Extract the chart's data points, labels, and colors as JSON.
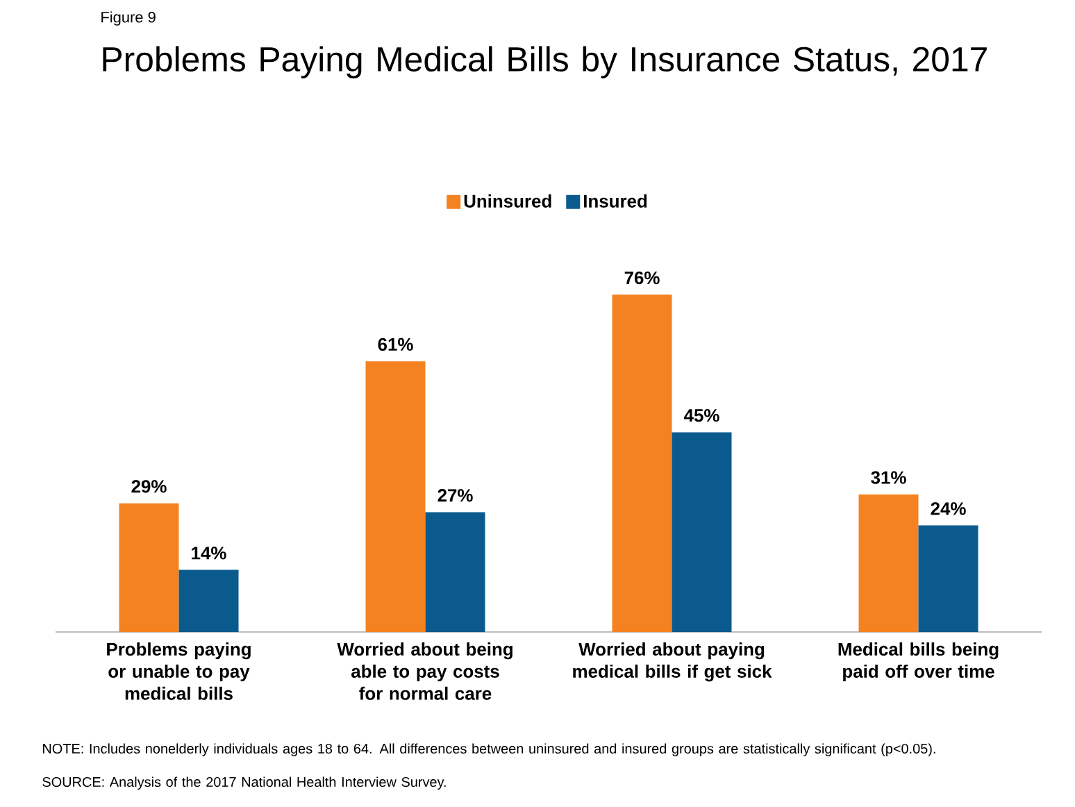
{
  "chart_data": {
    "type": "bar",
    "title": "Problems Paying Medical Bills by Insurance Status, 2017",
    "categories": [
      "Problems paying or unable to pay medical bills",
      "Worried about being able to pay costs for normal care",
      "Worried about paying medical bills if get sick",
      "Medical bills being paid off over time"
    ],
    "series": [
      {
        "name": "Uninsured",
        "color": "#f58220",
        "values": [
          29,
          61,
          76,
          31
        ],
        "value_labels": [
          "29%",
          "61%",
          "76%",
          "31%"
        ]
      },
      {
        "name": "Insured",
        "color": "#0b5a8e",
        "values": [
          14,
          27,
          45,
          24
        ],
        "value_labels": [
          "14%",
          "27%",
          "45%",
          "24%"
        ]
      }
    ],
    "legend": "top",
    "annotations": [
      "Figure 9",
      "NOTE: Includes nonelderly individuals ages 18 to 64. All differences between uninsured and insured groups are statistically significant (p<0.05).",
      "SOURCE: Analysis of the 2017 National Health Interview Survey."
    ]
  }
}
